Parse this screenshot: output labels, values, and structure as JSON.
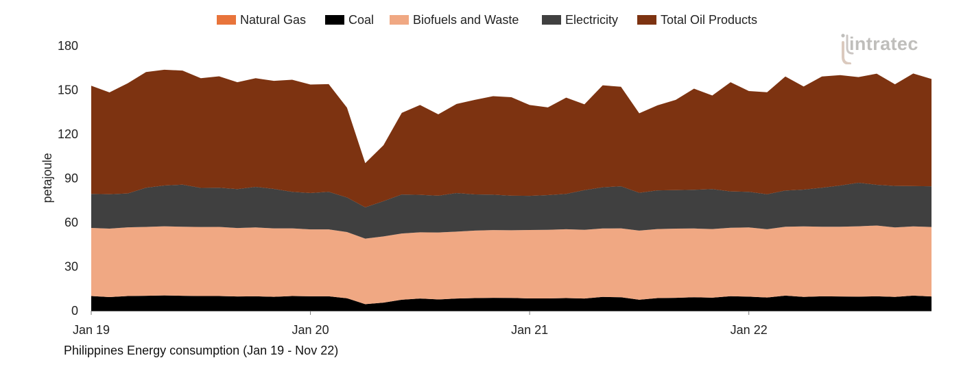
{
  "chart_data": {
    "type": "area",
    "stacked": true,
    "title": "Philippines Energy consumption (Jan 19 - Nov 22)",
    "ylabel": "petajoule",
    "ylim": [
      0,
      180
    ],
    "yticks": [
      0,
      30,
      60,
      90,
      120,
      150,
      180
    ],
    "grid": false,
    "legend_position": "top",
    "x": [
      "Jan 19",
      "Feb 19",
      "Mar 19",
      "Apr 19",
      "May 19",
      "Jun 19",
      "Jul 19",
      "Aug 19",
      "Sep 19",
      "Oct 19",
      "Nov 19",
      "Dec 19",
      "Jan 20",
      "Feb 20",
      "Mar 20",
      "Apr 20",
      "May 20",
      "Jun 20",
      "Jul 20",
      "Aug 20",
      "Sep 20",
      "Oct 20",
      "Nov 20",
      "Dec 20",
      "Jan 21",
      "Feb 21",
      "Mar 21",
      "Apr 21",
      "May 21",
      "Jun 21",
      "Jul 21",
      "Aug 21",
      "Sep 21",
      "Oct 21",
      "Nov 21",
      "Dec 21",
      "Jan 22",
      "Feb 22",
      "Mar 22",
      "Apr 22",
      "May 22",
      "Jun 22",
      "Jul 22",
      "Aug 22",
      "Sep 22",
      "Oct 22",
      "Nov 22"
    ],
    "x_ticks": [
      "Jan 19",
      "Jan 20",
      "Jan 21",
      "Jan 22"
    ],
    "series": [
      {
        "name": "Natural Gas",
        "color": "#e8743b",
        "values": [
          0,
          0,
          0,
          0,
          0,
          0,
          0,
          0,
          0,
          0,
          0,
          0,
          0,
          0,
          0,
          0,
          0,
          0,
          0,
          0,
          0,
          0,
          0,
          0,
          0,
          0,
          0,
          0,
          0,
          0,
          0,
          0,
          0,
          0,
          0,
          0,
          0,
          0,
          0,
          0,
          0,
          0,
          0,
          0,
          0,
          0,
          0
        ]
      },
      {
        "name": "Coal",
        "color": "#000000",
        "values": [
          10,
          9.3,
          10,
          10.2,
          10.4,
          10.2,
          10,
          10,
          9.7,
          9.8,
          9.5,
          10,
          9.8,
          9.8,
          8.5,
          4.5,
          5.5,
          7.5,
          8.3,
          7.7,
          8.3,
          8.6,
          8.8,
          8.7,
          8.4,
          8.4,
          8.6,
          8.3,
          9.4,
          9.2,
          7.5,
          8.6,
          8.8,
          9.2,
          8.9,
          9.9,
          9.6,
          9,
          10.3,
          9.4,
          9.8,
          9.7,
          9.6,
          9.8,
          9.4,
          10.3,
          9.7
        ]
      },
      {
        "name": "Biofuels and Waste",
        "color": "#f0a883",
        "values": [
          46.3,
          46.5,
          46.7,
          46.8,
          47,
          46.9,
          46.9,
          47,
          46.5,
          46.8,
          46.5,
          46,
          45.5,
          45.5,
          45,
          44.5,
          45,
          45,
          45,
          45.5,
          45.5,
          45.9,
          46,
          46,
          46.5,
          46.6,
          46.8,
          46.7,
          46.5,
          46.8,
          47,
          46.9,
          47,
          46.7,
          46.6,
          46.5,
          47,
          46.4,
          46.8,
          47.9,
          47.3,
          47.4,
          47.8,
          48.1,
          47.2,
          47,
          47.2
        ]
      },
      {
        "name": "Electricity",
        "color": "#404040",
        "values": [
          23.1,
          23.4,
          23,
          26.6,
          27.7,
          28.6,
          26.6,
          26.6,
          26.5,
          27.6,
          26.8,
          24.8,
          24.7,
          25.5,
          23.5,
          21.3,
          24,
          26.5,
          25.5,
          25,
          26.2,
          24.6,
          24.1,
          23.5,
          23.2,
          23.6,
          24,
          27,
          28,
          28.6,
          25.7,
          26.3,
          26.2,
          26.3,
          27.2,
          24.7,
          24.2,
          23.8,
          24.6,
          25,
          26.5,
          28,
          29.6,
          27.7,
          28.2,
          27.4,
          27.7
        ]
      },
      {
        "name": "Total Oil Products",
        "color": "#7d3311",
        "values": [
          73.5,
          69.2,
          74.9,
          78.6,
          78.7,
          77.5,
          74.5,
          75.7,
          72.6,
          73.8,
          73.4,
          76.2,
          73.7,
          73.2,
          61,
          30,
          38,
          55.5,
          61,
          55.3,
          60.5,
          64.2,
          66.9,
          66.9,
          61.7,
          59.6,
          65.4,
          58.3,
          69.3,
          67.6,
          54,
          57.8,
          61.3,
          68.7,
          63.6,
          74.2,
          68.5,
          69.3,
          77.5,
          70.1,
          75.6,
          75,
          71.8,
          75.5,
          69.1,
          76.5,
          72.9
        ]
      }
    ],
    "branding": {
      "logo_text": "intratec"
    }
  }
}
